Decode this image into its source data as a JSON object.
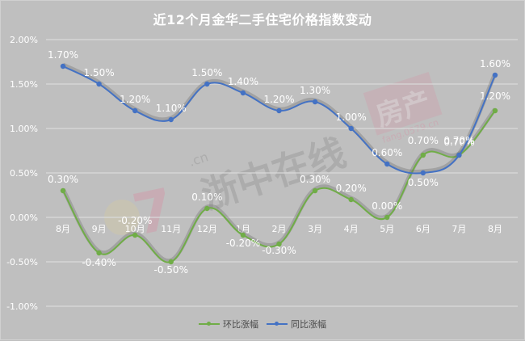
{
  "chart_data": {
    "type": "line",
    "title": "近12个月金华二手住宅价格指数变动",
    "categories": [
      "8月",
      "9月",
      "10月",
      "11月",
      "12月",
      "1月",
      "2月",
      "3月",
      "4月",
      "5月",
      "6月",
      "7月",
      "8月"
    ],
    "series": [
      {
        "name": "环比涨幅",
        "color": "#70ad47",
        "values": [
          0.3,
          -0.4,
          -0.2,
          -0.5,
          0.1,
          -0.2,
          -0.3,
          0.3,
          0.2,
          0.0,
          0.7,
          0.7,
          1.2
        ],
        "labels": [
          "0.30%",
          "-0.40%",
          "-0.20%",
          "-0.50%",
          "0.10%",
          "-0.20%",
          "-0.30%",
          "0.30%",
          "0.20%",
          "0.00%",
          "0.70%",
          "0.70%",
          "1.20%"
        ]
      },
      {
        "name": "同比涨幅",
        "color": "#4472c4",
        "values": [
          1.7,
          1.5,
          1.2,
          1.1,
          1.5,
          1.4,
          1.2,
          1.3,
          1.0,
          0.6,
          0.5,
          0.7,
          1.6
        ],
        "labels": [
          "1.70%",
          "1.50%",
          "1.20%",
          "1.10%",
          "1.50%",
          "1.40%",
          "1.20%",
          "1.30%",
          "1.00%",
          "0.60%",
          "0.50%",
          "0.70%",
          "1.60%"
        ]
      }
    ],
    "xlabel": "",
    "ylabel": "",
    "ylim": [
      -1.0,
      2.0
    ],
    "yticks": [
      "2.00%",
      "1.50%",
      "1.00%",
      "0.50%",
      "0.00%",
      "-0.50%",
      "-1.00%"
    ],
    "ytick_values": [
      2.0,
      1.5,
      1.0,
      0.5,
      0.0,
      -0.5,
      -1.0
    ],
    "grid": true,
    "legend_position": "bottom",
    "smooth": true,
    "category_axis_at_zero": true
  },
  "watermark": {
    "left_text": "浙中在线",
    "left_suffix": ".cn",
    "right_text": "房产",
    "right_url": "fang.0579.cn"
  },
  "colors": {
    "background": "#bfbfbf",
    "grid": "#d9d9d9",
    "label": "#ffffff",
    "legend_text": "#4a4a4a"
  }
}
